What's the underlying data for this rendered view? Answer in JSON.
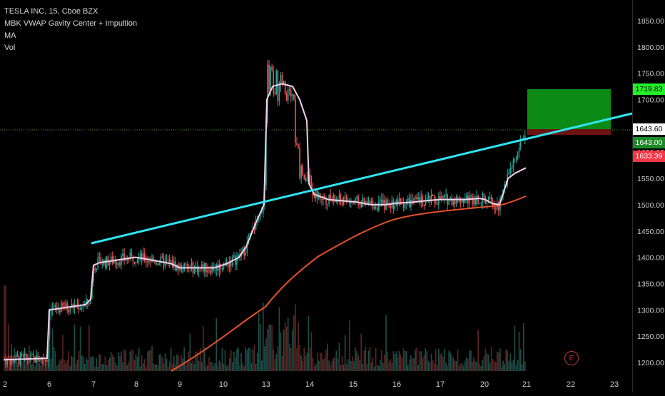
{
  "legend": {
    "symbol_line": "TESLA INC, 15, Cboe BZX",
    "indicator_1": "MBK VWAP Gavity Center + Impultion",
    "indicator_2": "MA",
    "indicator_3": "Vol"
  },
  "price_axis": {
    "ticks": [
      "1850.00",
      "1800.00",
      "1750.00",
      "1700.00",
      "1650.00",
      "1600.00",
      "1550.00",
      "1500.00",
      "1450.00",
      "1400.00",
      "1350.00",
      "1300.00",
      "1250.00",
      "1200.00"
    ]
  },
  "price_tags": {
    "target": "1719.83",
    "last": "1643.60",
    "entry": "1643.00",
    "stop": "1633.39"
  },
  "time_axis": {
    "labels": [
      "2",
      "6",
      "7",
      "8",
      "9",
      "10",
      "13",
      "14",
      "15",
      "16",
      "17",
      "20",
      "21",
      "22",
      "23"
    ]
  },
  "event_badge": "E",
  "colors": {
    "background": "#000000",
    "up_candle": "#26a69a",
    "down_candle": "#ef5350",
    "trendline": "#2ee6f2",
    "vwap": "#f2d0ea",
    "ma": "#e8502a",
    "target_zone": "#0b8a16",
    "stop_zone": "#6d1212",
    "last_price_line": "#5a8f3a",
    "tag_green": "#23f02a",
    "tag_red": "#f23645"
  }
}
